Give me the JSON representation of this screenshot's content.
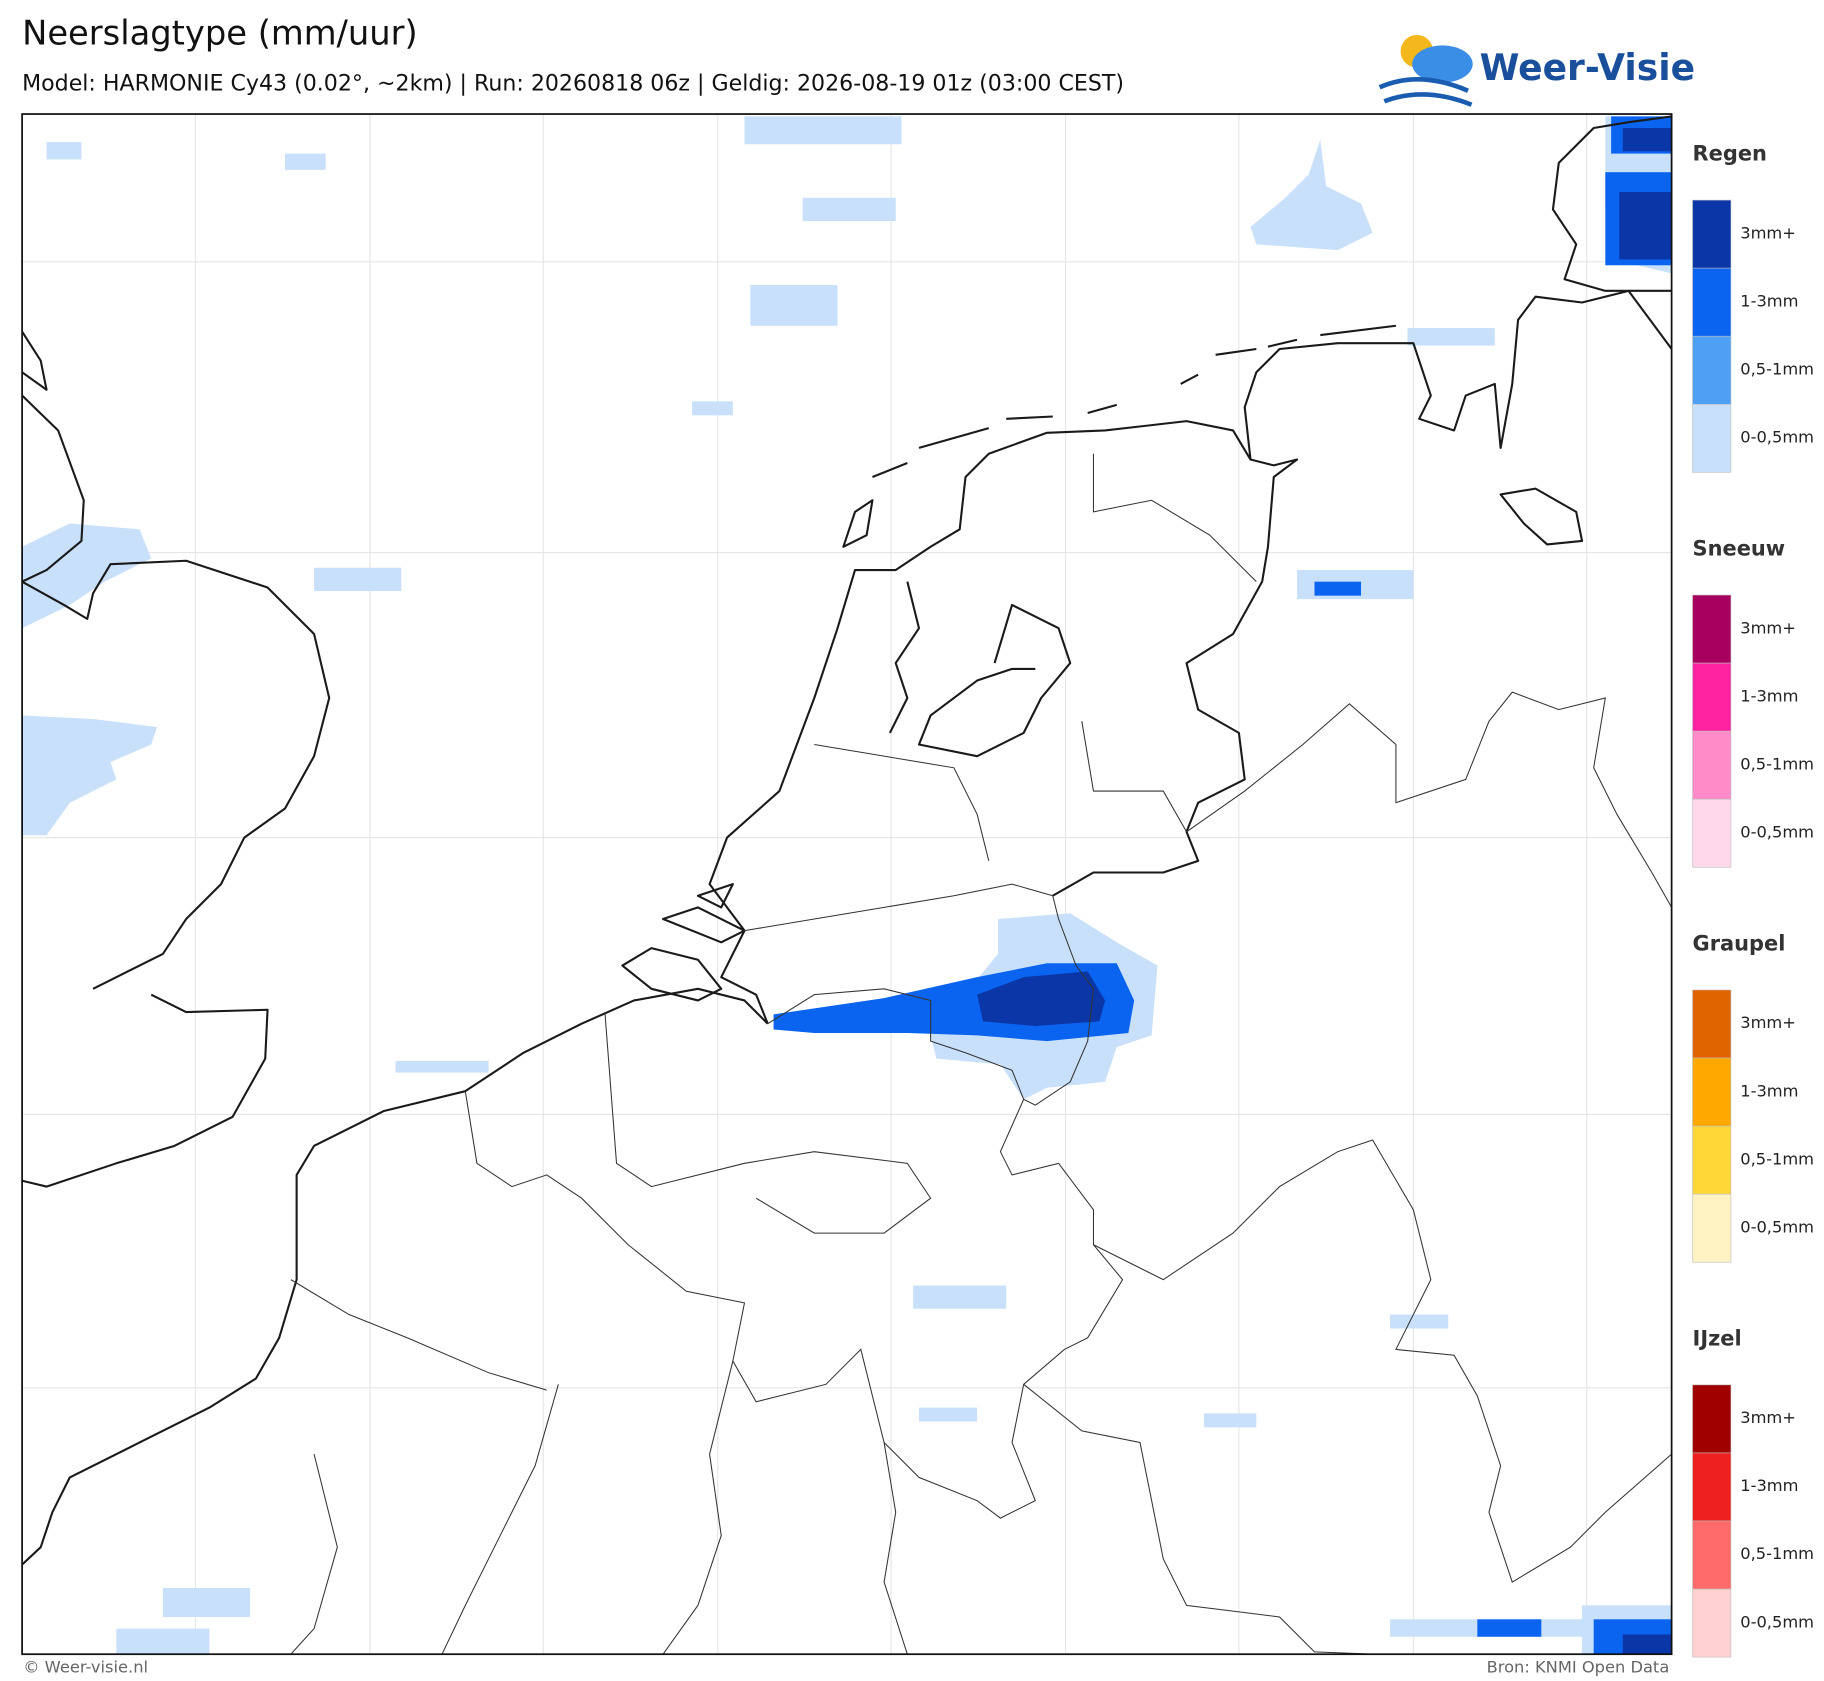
{
  "header": {
    "title": "Neerslagtype (mm/uur)",
    "subtitle": "Model: HARMONIE Cy43 (0.02°, ~2km)  |  Run: 20260818 06z  |  Geldig: 2026-08-19 01z (03:00 CEST)"
  },
  "logo": {
    "text": "Weer-Visie"
  },
  "legend": {
    "sections": [
      {
        "title": "Regen",
        "labels": [
          "3mm+",
          "1-3mm",
          "0,5-1mm",
          "0-0,5mm"
        ],
        "colors": [
          "#0a36a8",
          "#0a64f0",
          "#4ea0f5",
          "#c8e0fa"
        ]
      },
      {
        "title": "Sneeuw",
        "labels": [
          "3mm+",
          "1-3mm",
          "0,5-1mm",
          "0-0,5mm"
        ],
        "colors": [
          "#a8005f",
          "#ff22a0",
          "#ff8cc8",
          "#ffd8ec"
        ]
      },
      {
        "title": "Graupel",
        "labels": [
          "3mm+",
          "1-3mm",
          "0,5-1mm",
          "0-0,5mm"
        ],
        "colors": [
          "#e06400",
          "#ffa800",
          "#ffd838",
          "#fff3c4"
        ]
      },
      {
        "title": "IJzel",
        "labels": [
          "3mm+",
          "1-3mm",
          "0,5-1mm",
          "0-0,5mm"
        ],
        "colors": [
          "#a00000",
          "#ee2020",
          "#ff6a6a",
          "#ffd0d0"
        ]
      }
    ]
  },
  "footer": {
    "left": "© Weer-visie.nl",
    "right": "Bron: KNMI Open Data"
  }
}
